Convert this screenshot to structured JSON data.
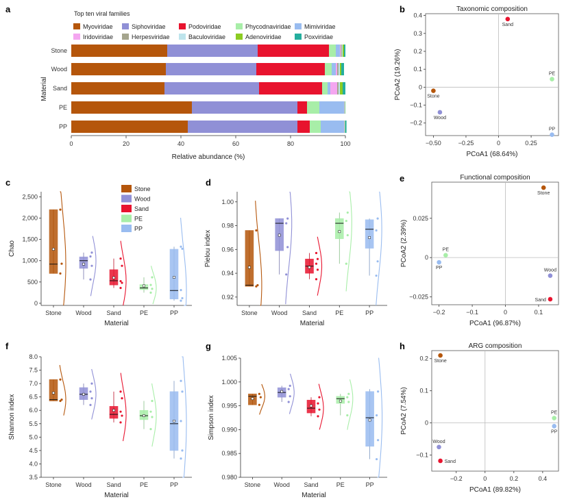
{
  "panel_labels": [
    "a",
    "b",
    "c",
    "d",
    "e",
    "f",
    "g",
    "h"
  ],
  "chart_data": [
    {
      "id": "a",
      "type": "bar",
      "orientation": "horizontal",
      "stacked": true,
      "legend_title": "Top ten viral families",
      "xlabel": "Relative abundance (%)",
      "ylabel": "Material",
      "xlim": [
        0,
        100
      ],
      "xticks": [
        0,
        20,
        40,
        60,
        80,
        100
      ],
      "categories": [
        "Stone",
        "Wood",
        "Sand",
        "PE",
        "PP"
      ],
      "series": [
        {
          "name": "Myoviridae",
          "color": "#b5560b",
          "values": [
            35,
            34.5,
            34,
            44,
            42.5
          ]
        },
        {
          "name": "Siphoviridae",
          "color": "#9090d6",
          "values": [
            33,
            33,
            34.5,
            38.5,
            40
          ]
        },
        {
          "name": "Podoviridae",
          "color": "#e8132e",
          "values": [
            26,
            25,
            23,
            3.5,
            4.5
          ]
        },
        {
          "name": "Phycodnaviridae",
          "color": "#a8eea8",
          "values": [
            2.5,
            2.5,
            2,
            4.5,
            4
          ]
        },
        {
          "name": "Mimiviridae",
          "color": "#99bcf0",
          "values": [
            1.5,
            1.5,
            1,
            9,
            8.5
          ]
        },
        {
          "name": "Iridoviridae",
          "color": "#f4a6f0",
          "values": [
            0.3,
            0.5,
            2.5,
            0.1,
            0.1
          ]
        },
        {
          "name": "Herpesviridae",
          "color": "#a5a58e",
          "values": [
            0.4,
            0.5,
            0.5,
            0.1,
            0.1
          ]
        },
        {
          "name": "Baculoviridae",
          "color": "#bde4ec",
          "values": [
            0.3,
            0.5,
            0.5,
            0.1,
            0.1
          ]
        },
        {
          "name": "Adenoviridae",
          "color": "#8ccc22",
          "values": [
            0.5,
            0.5,
            1,
            0.1,
            0.1
          ]
        },
        {
          "name": "Poxviridae",
          "color": "#24ae9e",
          "values": [
            0.5,
            1,
            1,
            0.1,
            0.5
          ]
        }
      ]
    },
    {
      "id": "b",
      "type": "scatter",
      "title": "Taxonomic composition",
      "xlabel": "PCoA1 (68.64%)",
      "ylabel": "PCoA2 (19.26%)",
      "xlim": [
        -0.56,
        0.46
      ],
      "ylim": [
        -0.27,
        0.41
      ],
      "xticks": [
        -0.5,
        -0.25,
        0,
        0.25
      ],
      "xticklabels": [
        "−0.50",
        "−0.25",
        "0",
        "0.25"
      ],
      "yticks": [
        -0.2,
        -0.1,
        0,
        0.1,
        0.2,
        0.3,
        0.4
      ],
      "yticklabels": [
        "−0.2",
        "−0.1",
        "0",
        "0.1",
        "0.2",
        "0.3",
        "0.4"
      ],
      "points": [
        {
          "label": "Sand",
          "x": 0.07,
          "y": 0.38,
          "color": "#e8132e",
          "pos": "below"
        },
        {
          "label": "PE",
          "x": 0.41,
          "y": 0.045,
          "color": "#a8eea8",
          "pos": "above"
        },
        {
          "label": "Stone",
          "x": -0.5,
          "y": -0.02,
          "color": "#b5560b",
          "pos": "below"
        },
        {
          "label": "Wood",
          "x": -0.45,
          "y": -0.14,
          "color": "#9090d6",
          "pos": "below"
        },
        {
          "label": "PP",
          "x": 0.41,
          "y": -0.265,
          "color": "#99bcf0",
          "pos": "above"
        }
      ]
    },
    {
      "id": "c",
      "type": "box",
      "xlabel": "Material",
      "ylabel": "Chao",
      "ylim": [
        -50,
        2620
      ],
      "yticks": [
        0,
        500,
        1000,
        1500,
        2000,
        2500
      ],
      "yticklabels": [
        "0",
        "500",
        "1,000",
        "1,500",
        "2,000",
        "2,500"
      ],
      "legend": [
        "Stone",
        "Wood",
        "Sand",
        "PE",
        "PP"
      ],
      "groups": [
        {
          "name": "Stone",
          "color": "#b5560b",
          "q1": 700,
          "median": 920,
          "q3": 2200,
          "mean": 1270,
          "whisker": [
            700,
            2200
          ],
          "points": [
            700,
            930,
            2200
          ]
        },
        {
          "name": "Wood",
          "color": "#9090d6",
          "q1": 820,
          "median": 1000,
          "q3": 1090,
          "mean": 920,
          "whisker": [
            560,
            1190
          ],
          "points": [
            560,
            880,
            1100,
            1190
          ]
        },
        {
          "name": "Sand",
          "color": "#e8132e",
          "q1": 430,
          "median": 530,
          "q3": 790,
          "mean": 600,
          "whisker": [
            360,
            1050
          ],
          "points": [
            360,
            480,
            520,
            880,
            1050
          ]
        },
        {
          "name": "PE",
          "color": "#a8eea8",
          "q1": 320,
          "median": 360,
          "q3": 440,
          "mean": 410,
          "whisker": [
            250,
            610
          ],
          "points": [
            250,
            340,
            430,
            610
          ]
        },
        {
          "name": "PP",
          "color": "#99bcf0",
          "q1": 100,
          "median": 300,
          "q3": 1270,
          "mean": 610,
          "whisker": [
            60,
            1330
          ],
          "points": [
            60,
            120,
            310,
            1280,
            1330
          ]
        }
      ]
    },
    {
      "id": "d",
      "type": "box",
      "xlabel": "Material",
      "ylabel": "Pielou index",
      "ylim": [
        0.913,
        1.0085
      ],
      "yticks": [
        0.92,
        0.94,
        0.96,
        0.98,
        1.0
      ],
      "yticklabels": [
        "0.92",
        "0.94",
        "0.96",
        "0.98",
        "1.00"
      ],
      "groups": [
        {
          "name": "Stone",
          "color": "#b5560b",
          "q1": 0.929,
          "median": 0.93,
          "q3": 0.976,
          "mean": 0.945,
          "whisker": [
            0.929,
            0.976
          ],
          "points": [
            0.929,
            0.93,
            0.976
          ]
        },
        {
          "name": "Wood",
          "color": "#9090d6",
          "q1": 0.959,
          "median": 0.982,
          "q3": 0.986,
          "mean": 0.972,
          "whisker": [
            0.939,
            0.986
          ],
          "points": [
            0.939,
            0.962,
            0.982,
            0.986
          ]
        },
        {
          "name": "Sand",
          "color": "#e8132e",
          "q1": 0.94,
          "median": 0.946,
          "q3": 0.952,
          "mean": 0.945,
          "whisker": [
            0.935,
            0.957
          ],
          "points": [
            0.935,
            0.943,
            0.948,
            0.952,
            0.957
          ]
        },
        {
          "name": "PE",
          "color": "#a8eea8",
          "q1": 0.969,
          "median": 0.982,
          "q3": 0.986,
          "mean": 0.975,
          "whisker": [
            0.948,
            0.991
          ],
          "points": [
            0.948,
            0.972,
            0.984,
            0.991
          ]
        },
        {
          "name": "PP",
          "color": "#99bcf0",
          "q1": 0.961,
          "median": 0.977,
          "q3": 0.985,
          "mean": 0.97,
          "whisker": [
            0.938,
            0.986
          ],
          "points": [
            0.938,
            0.95,
            0.976,
            0.986
          ]
        }
      ]
    },
    {
      "id": "e",
      "type": "scatter",
      "title": "Functional composition",
      "xlabel": "PCoA1 (96.87%)",
      "ylabel": "PCoA2 (2.39%)",
      "xlim": [
        -0.222,
        0.16
      ],
      "ylim": [
        -0.03,
        0.048
      ],
      "xticks": [
        -0.2,
        -0.1,
        0,
        0.1
      ],
      "xticklabels": [
        "−0.2",
        "−0.1",
        "0",
        "0.1"
      ],
      "yticks": [
        -0.025,
        0,
        0.025
      ],
      "yticklabels": [
        "−0.025",
        "0",
        "0.025"
      ],
      "points": [
        {
          "label": "Stone",
          "x": 0.115,
          "y": 0.0445,
          "color": "#b5560b",
          "pos": "below"
        },
        {
          "label": "PE",
          "x": -0.18,
          "y": 0.0015,
          "color": "#a8eea8",
          "pos": "above"
        },
        {
          "label": "PP",
          "x": -0.2,
          "y": -0.003,
          "color": "#99bcf0",
          "pos": "below"
        },
        {
          "label": "Wood",
          "x": 0.135,
          "y": -0.0115,
          "color": "#9090d6",
          "pos": "above"
        },
        {
          "label": "Sand",
          "x": 0.135,
          "y": -0.0265,
          "color": "#e8132e",
          "pos": "left"
        }
      ]
    },
    {
      "id": "f",
      "type": "box",
      "xlabel": "Material",
      "ylabel": "Shannon index",
      "ylim": [
        3.5,
        8.0
      ],
      "yticks": [
        3.5,
        4.0,
        4.5,
        5.0,
        5.5,
        6.0,
        6.5,
        7.0,
        7.5,
        8.0
      ],
      "yticklabels": [
        "3.5",
        "4.0",
        "4.5",
        "5.0",
        "5.5",
        "6.0",
        "6.5",
        "7.0",
        "7.5",
        "8.0"
      ],
      "groups": [
        {
          "name": "Stone",
          "color": "#b5560b",
          "q1": 6.35,
          "median": 6.4,
          "q3": 7.15,
          "mean": 6.65,
          "whisker": [
            6.35,
            7.15
          ],
          "points": [
            6.35,
            6.4,
            7.15
          ]
        },
        {
          "name": "Wood",
          "color": "#9090d6",
          "q1": 6.4,
          "median": 6.6,
          "q3": 6.85,
          "mean": 6.6,
          "whisker": [
            6.2,
            7.0
          ],
          "points": [
            6.2,
            6.45,
            6.7,
            7.0
          ]
        },
        {
          "name": "Sand",
          "color": "#e8132e",
          "q1": 5.7,
          "median": 5.85,
          "q3": 6.15,
          "mean": 6.0,
          "whisker": [
            5.55,
            6.7
          ],
          "points": [
            5.55,
            5.8,
            5.95,
            6.45,
            6.7
          ]
        },
        {
          "name": "PE",
          "color": "#a8eea8",
          "q1": 5.65,
          "median": 5.8,
          "q3": 6.0,
          "mean": 5.8,
          "whisker": [
            5.3,
            6.35
          ],
          "points": [
            5.3,
            5.75,
            5.95,
            6.35
          ]
        },
        {
          "name": "PP",
          "color": "#99bcf0",
          "q1": 4.5,
          "median": 5.5,
          "q3": 6.7,
          "mean": 5.6,
          "whisker": [
            4.2,
            7.1
          ],
          "points": [
            4.2,
            4.5,
            5.6,
            6.7,
            7.1
          ]
        }
      ]
    },
    {
      "id": "g",
      "type": "box",
      "xlabel": "Material",
      "ylabel": "Simpson index",
      "ylim": [
        0.98,
        1.005
      ],
      "yticks": [
        0.98,
        0.985,
        0.99,
        0.995,
        1.0,
        1.005
      ],
      "yticklabels": [
        "0.980",
        "0.985",
        "0.990",
        "0.995",
        "1.000",
        "1.005"
      ],
      "groups": [
        {
          "name": "Stone",
          "color": "#b5560b",
          "q1": 0.9952,
          "median": 0.997,
          "q3": 0.9975,
          "mean": 0.9965,
          "whisker": [
            0.9952,
            0.9975
          ],
          "points": [
            0.9952,
            0.9968,
            0.9975
          ]
        },
        {
          "name": "Wood",
          "color": "#9090d6",
          "q1": 0.9968,
          "median": 0.9978,
          "q3": 0.9988,
          "mean": 0.998,
          "whisker": [
            0.9958,
            0.9992
          ],
          "points": [
            0.9958,
            0.997,
            0.9985,
            0.9992
          ]
        },
        {
          "name": "Sand",
          "color": "#e8132e",
          "q1": 0.9935,
          "median": 0.9945,
          "q3": 0.9962,
          "mean": 0.995,
          "whisker": [
            0.9928,
            0.9968
          ],
          "points": [
            0.9928,
            0.9942,
            0.9955,
            0.9968
          ]
        },
        {
          "name": "PE",
          "color": "#a8eea8",
          "q1": 0.9955,
          "median": 0.9965,
          "q3": 0.997,
          "mean": 0.996,
          "whisker": [
            0.993,
            0.9975
          ],
          "points": [
            0.993,
            0.9958,
            0.9968,
            0.9975
          ]
        },
        {
          "name": "PP",
          "color": "#99bcf0",
          "q1": 0.9865,
          "median": 0.9925,
          "q3": 0.998,
          "mean": 0.992,
          "whisker": [
            0.9838,
            0.9985
          ],
          "points": [
            0.9838,
            0.9878,
            0.993,
            0.998
          ]
        }
      ]
    },
    {
      "id": "h",
      "type": "scatter",
      "title": "ARG composition",
      "xlabel": "PCoA1 (89.82%)",
      "ylabel": "PCoA2 (7.54%)",
      "xlim": [
        -0.37,
        0.51
      ],
      "ylim": [
        -0.15,
        0.225
      ],
      "xticks": [
        -0.2,
        0,
        0.2,
        0.4
      ],
      "xticklabels": [
        "−0.2",
        "0",
        "0.2",
        "0.4"
      ],
      "yticks": [
        -0.1,
        0,
        0.1,
        0.2
      ],
      "yticklabels": [
        "−0.1",
        "0",
        "0.1",
        "0.2"
      ],
      "points": [
        {
          "label": "Stone",
          "x": -0.31,
          "y": 0.21,
          "color": "#b5560b",
          "pos": "below"
        },
        {
          "label": "PE",
          "x": 0.48,
          "y": 0.015,
          "color": "#a8eea8",
          "pos": "above"
        },
        {
          "label": "PP",
          "x": 0.48,
          "y": -0.01,
          "color": "#99bcf0",
          "pos": "below"
        },
        {
          "label": "Wood",
          "x": -0.32,
          "y": -0.075,
          "color": "#9090d6",
          "pos": "above"
        },
        {
          "label": "Sand",
          "x": -0.31,
          "y": -0.118,
          "color": "#e8132e",
          "pos": "right"
        }
      ]
    }
  ]
}
